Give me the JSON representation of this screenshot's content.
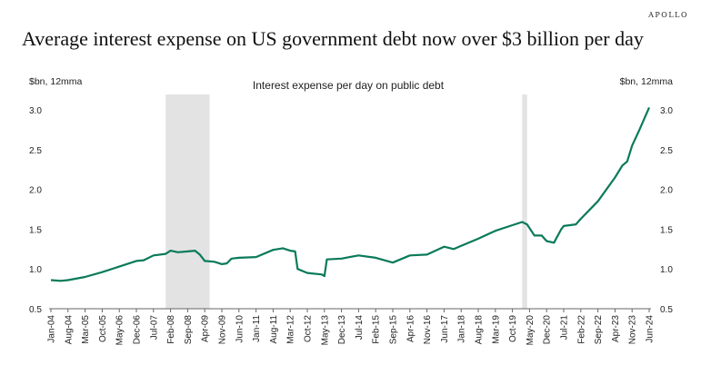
{
  "logo": "APOLLO",
  "title": "Average interest expense on US government debt now over $3 billion per day",
  "chart_data": {
    "type": "line",
    "title": "Interest expense per day on public debt",
    "ylabel_left": "$bn, 12mma",
    "ylabel_right": "$bn, 12mma",
    "ylim": [
      0.5,
      3.0
    ],
    "yticks": [
      "0.5",
      "1.0",
      "1.5",
      "2.0",
      "2.5",
      "3.0"
    ],
    "ytick_values": [
      0.5,
      1.0,
      1.5,
      2.0,
      2.5,
      3.0
    ],
    "xlim": [
      "2004-01",
      "2024-06"
    ],
    "xticks": [
      "Jan-04",
      "Aug-04",
      "Mar-05",
      "Oct-05",
      "May-06",
      "Dec-06",
      "Jul-07",
      "Feb-08",
      "Sep-08",
      "Apr-09",
      "Nov-09",
      "Jun-10",
      "Jan-11",
      "Aug-11",
      "Mar-12",
      "Oct-12",
      "May-13",
      "Dec-13",
      "Jul-14",
      "Feb-15",
      "Sep-15",
      "Apr-16",
      "Nov-16",
      "Jun-17",
      "Jan-18",
      "Aug-18",
      "Mar-19",
      "Oct-19",
      "May-20",
      "Dec-20",
      "Jul-21",
      "Feb-22",
      "Sep-22",
      "Apr-23",
      "Nov-23",
      "Jun-24"
    ],
    "recessions": [
      [
        "2007-12",
        "2009-06"
      ],
      [
        "2020-02",
        "2020-04"
      ]
    ],
    "grid": false,
    "color": "#0a7a5a",
    "shade_color": "#e3e3e3",
    "series": [
      {
        "name": "Interest expense per day",
        "x": [
          "2004-01",
          "2004-05",
          "2004-08",
          "2005-03",
          "2005-10",
          "2006-05",
          "2006-12",
          "2007-03",
          "2007-07",
          "2007-12",
          "2008-02",
          "2008-05",
          "2008-09",
          "2008-12",
          "2009-02",
          "2009-04",
          "2009-08",
          "2009-11",
          "2010-01",
          "2010-03",
          "2010-06",
          "2011-01",
          "2011-08",
          "2011-12",
          "2012-03",
          "2012-05",
          "2012-06",
          "2012-10",
          "2013-04",
          "2013-05",
          "2013-06",
          "2013-12",
          "2014-07",
          "2015-02",
          "2015-09",
          "2016-04",
          "2016-11",
          "2017-06",
          "2017-10",
          "2018-01",
          "2018-08",
          "2019-03",
          "2019-10",
          "2020-02",
          "2020-04",
          "2020-07",
          "2020-10",
          "2020-12",
          "2021-03",
          "2021-06",
          "2021-07",
          "2021-12",
          "2022-02",
          "2022-09",
          "2023-04",
          "2023-07",
          "2023-09",
          "2023-11",
          "2024-02",
          "2024-06"
        ],
        "values": [
          0.86,
          0.85,
          0.86,
          0.9,
          0.96,
          1.03,
          1.1,
          1.11,
          1.17,
          1.19,
          1.23,
          1.21,
          1.22,
          1.23,
          1.18,
          1.1,
          1.09,
          1.06,
          1.07,
          1.13,
          1.14,
          1.15,
          1.24,
          1.26,
          1.23,
          1.22,
          1.0,
          0.95,
          0.93,
          0.91,
          1.12,
          1.13,
          1.17,
          1.14,
          1.08,
          1.17,
          1.18,
          1.28,
          1.25,
          1.29,
          1.38,
          1.48,
          1.55,
          1.59,
          1.56,
          1.42,
          1.42,
          1.35,
          1.33,
          1.5,
          1.54,
          1.56,
          1.63,
          1.85,
          2.15,
          2.3,
          2.35,
          2.55,
          2.75,
          3.03
        ]
      }
    ]
  }
}
